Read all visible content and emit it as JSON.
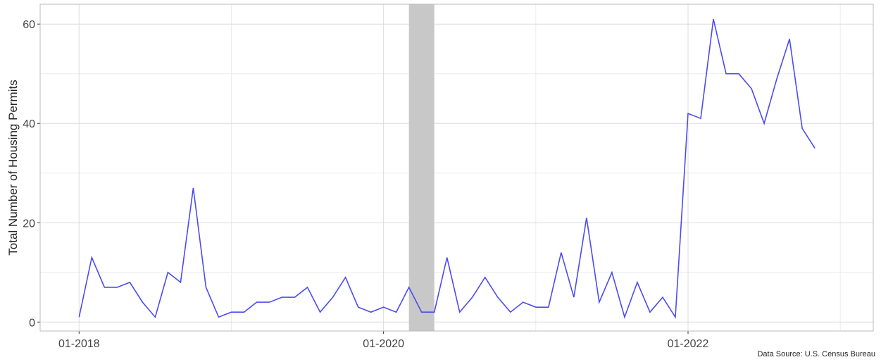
{
  "chart_data": {
    "type": "line",
    "ylabel": "Total Number of Housing Permits",
    "caption": "Data Source: U.S. Census Bureau",
    "x": [
      "01-2018",
      "02-2018",
      "03-2018",
      "04-2018",
      "05-2018",
      "06-2018",
      "07-2018",
      "08-2018",
      "09-2018",
      "10-2018",
      "11-2018",
      "12-2018",
      "01-2019",
      "02-2019",
      "03-2019",
      "04-2019",
      "05-2019",
      "06-2019",
      "07-2019",
      "08-2019",
      "09-2019",
      "10-2019",
      "11-2019",
      "12-2019",
      "01-2020",
      "02-2020",
      "03-2020",
      "04-2020",
      "05-2020",
      "06-2020",
      "07-2020",
      "08-2020",
      "09-2020",
      "10-2020",
      "11-2020",
      "12-2020",
      "01-2021",
      "02-2021",
      "03-2021",
      "04-2021",
      "05-2021",
      "06-2021",
      "07-2021",
      "08-2021",
      "09-2021",
      "10-2021",
      "11-2021",
      "12-2021",
      "01-2022",
      "02-2022",
      "03-2022",
      "04-2022",
      "05-2022",
      "06-2022",
      "07-2022",
      "08-2022",
      "09-2022",
      "10-2022",
      "11-2022"
    ],
    "series": [
      {
        "name": "Housing Permits",
        "color": "#4b4bf2",
        "values": [
          1,
          13,
          7,
          7,
          8,
          4,
          1,
          10,
          8,
          27,
          7,
          1,
          2,
          2,
          4,
          4,
          5,
          5,
          7,
          2,
          5,
          9,
          3,
          2,
          3,
          2,
          7,
          2,
          2,
          13,
          2,
          5,
          9,
          5,
          2,
          4,
          3,
          3,
          14,
          5,
          21,
          4,
          10,
          1,
          8,
          2,
          5,
          1,
          42,
          41,
          61,
          50,
          50,
          47,
          40,
          49,
          57,
          39,
          35
        ]
      }
    ],
    "shaded_periods": [
      {
        "start": "03-2020",
        "end": "05-2020",
        "color": "#c8c8c8"
      }
    ],
    "ylim": [
      -1.8,
      64
    ],
    "yticks": [
      0,
      20,
      40,
      60
    ],
    "yticks_minor": [
      10,
      30,
      50
    ],
    "xticks": [
      "01-2018",
      "01-2020",
      "01-2022"
    ],
    "xticks_minor": [
      "01-2019",
      "01-2021",
      "01-2023"
    ],
    "grid": true
  }
}
